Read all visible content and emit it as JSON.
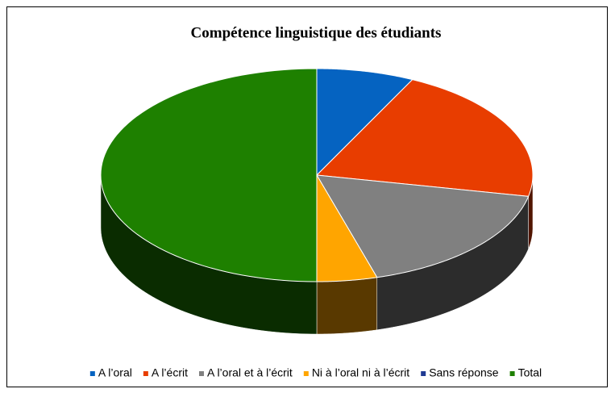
{
  "chart_data": {
    "type": "pie",
    "title": "Compétence linguistique des étudiants",
    "categories": [
      "A l’oral",
      "A l’écrit",
      "A l’oral et à l’écrit",
      "Ni à l’oral ni à l’écrit",
      "Sans réponse",
      "Total"
    ],
    "values": [
      7.3,
      20.9,
      17.3,
      4.5,
      0,
      50
    ],
    "colors": [
      "#0563c1",
      "#e83d00",
      "#808080",
      "#ffa500",
      "#1f3a93",
      "#1e8000"
    ],
    "legend": "bottom"
  }
}
